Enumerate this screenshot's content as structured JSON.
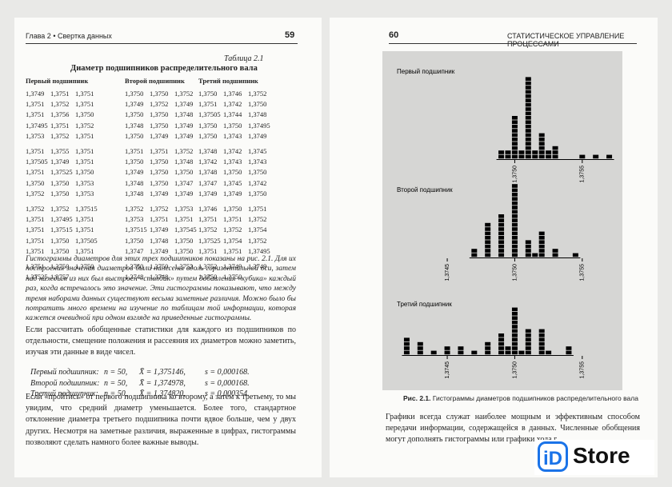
{
  "header": {
    "left_title": "Глава 2 • Свертка данных",
    "left_page": "59",
    "right_page": "60",
    "right_title": "СТАТИСТИЧЕСКОЕ УПРАВЛЕНИЕ ПРОЦЕССАМИ"
  },
  "table": {
    "label": "Таблица 2.1",
    "title": "Диаметр подшипников распределительного вала",
    "headers": [
      "Первый подшипник",
      "Второй подшипник",
      "Третий подшипник"
    ],
    "blocks": [
      [
        [
          [
            "1,3749",
            "1,3751",
            "1,3751"
          ],
          [
            "1,3750",
            "1,3750",
            "1,3752"
          ],
          [
            "1,3750",
            "1,3746",
            "1,3752"
          ]
        ],
        [
          [
            "1,3751",
            "1,3752",
            "1,3751"
          ],
          [
            "1,3749",
            "1,3752",
            "1,3749"
          ],
          [
            "1,3751",
            "1,3742",
            "1,3750"
          ]
        ],
        [
          [
            "1,3751",
            "1,3756",
            "1,3750"
          ],
          [
            "1,3750",
            "1,3750",
            "1,3748"
          ],
          [
            "1,37505",
            "1,3744",
            "1,3748"
          ]
        ],
        [
          [
            "1,37495",
            "1,3751",
            "1,3752"
          ],
          [
            "1,3748",
            "1,3750",
            "1,3749"
          ],
          [
            "1,3750",
            "1,3750",
            "1,37495"
          ]
        ],
        [
          [
            "1,3753",
            "1,3752",
            "1,3751"
          ],
          [
            "1,3750",
            "1,3749",
            "1,3749"
          ],
          [
            "1,3750",
            "1,3743",
            "1,3749"
          ]
        ]
      ],
      [
        [
          [
            "1,3751",
            "1,3755",
            "1,3751"
          ],
          [
            "1,3751",
            "1,3751",
            "1,3752"
          ],
          [
            "1,3748",
            "1,3742",
            "1,3745"
          ]
        ],
        [
          [
            "1,37505",
            "1,3749",
            "1,3751"
          ],
          [
            "1,3750",
            "1,3750",
            "1,3748"
          ],
          [
            "1,3742",
            "1,3743",
            "1,3743"
          ]
        ],
        [
          [
            "1,3751",
            "1,37525",
            "1,3750"
          ],
          [
            "1,3749",
            "1,3750",
            "1,3750"
          ],
          [
            "1,3748",
            "1,3750",
            "1,3750"
          ]
        ],
        [
          [
            "1,3750",
            "1,3750",
            "1,3753"
          ],
          [
            "1,3748",
            "1,3750",
            "1,3747"
          ],
          [
            "1,3747",
            "1,3745",
            "1,3742"
          ]
        ],
        [
          [
            "1,3752",
            "1,3750",
            "1,3753"
          ],
          [
            "1,3748",
            "1,3749",
            "1,3749"
          ],
          [
            "1,3749",
            "1,3749",
            "1,3750"
          ]
        ]
      ],
      [
        [
          [
            "1,3752",
            "1,3752",
            "1,37515"
          ],
          [
            "1,3752",
            "1,3752",
            "1,3753"
          ],
          [
            "1,3746",
            "1,3750",
            "1,3751"
          ]
        ],
        [
          [
            "1,3751",
            "1,37495",
            "1,3751"
          ],
          [
            "1,3753",
            "1,3751",
            "1,3751"
          ],
          [
            "1,3751",
            "1,3751",
            "1,3752"
          ]
        ],
        [
          [
            "1,3751",
            "1,37515",
            "1,3751"
          ],
          [
            "1,37515",
            "1,3749",
            "1,37545"
          ],
          [
            "1,3752",
            "1,3752",
            "1,3754"
          ]
        ],
        [
          [
            "1,3751",
            "1,3750",
            "1,37505"
          ],
          [
            "1,3750",
            "1,3748",
            "1,3750"
          ],
          [
            "1,37525",
            "1,3754",
            "1,3752"
          ]
        ],
        [
          [
            "1,3751",
            "1,3750",
            "1,3751"
          ],
          [
            "1,3747",
            "1,3749",
            "1,3750"
          ],
          [
            "1,3751",
            "1,3751",
            "1,37495"
          ]
        ]
      ],
      [
        [
          [
            "1,3751",
            "1,3750",
            "1,3750"
          ],
          [
            "1,3750",
            "1,3750",
            "1,3752"
          ],
          [
            "1,3752",
            "1,3749",
            "1,3749"
          ]
        ],
        [
          [
            "1,37525",
            "1,3757"
          ],
          [
            "1,3748",
            "1,3748"
          ],
          [
            "1,3750",
            "1,3750"
          ]
        ]
      ]
    ]
  },
  "text": {
    "italic": "Гистограммы диаметров для этих трех подшипников показаны на рис. 2.1. Для их построения значения диаметров были нанесены вдоль горизонтальной оси, затем над каждым из них был выстроен «столбик» путем добавления «кубика» каждый раз, когда встречалось это значение. Эти гистограммы показывают, что между тремя наборами данных существуют весьма заметные различия. Можно было бы потратить много времени на изучение по таблицам той информации, которая кажется очевидной при одном взгляде на приведенные гистограммы.",
    "p1": "Если рассчитать обобщенные статистики для каждого из подшипников по отдельности, смещение положения и рассеяния их диаметров можно заметить, изучая эти данные в виде чисел.",
    "p2": "Если «пройтись» от первого подшипника ко второму, а затем к третьему, то мы увидим, что средний диаметр уменьшается. Более того, стандартное отклонение диаметра третьего подшипника почти вдвое больше, чем у двух других. Несмотря на заметные различия, выраженные в цифрах, гистограммы позволяют сделать намного более важные выводы.",
    "p3": "Графики всегда служат наиболее мощным и эффективным способом передачи информации, содержащейся в данных. Численные обобщения могут дополнять гистограммы или графики хода г"
  },
  "stats": [
    {
      "label": "Первый подшипник:",
      "n": "n = 50,",
      "mean": "X̄ = 1,375146,",
      "s": "s = 0,000168."
    },
    {
      "label": "Второй подшипник:",
      "n": "n = 50,",
      "mean": "X̄ = 1,374978,",
      "s": "s = 0,000168."
    },
    {
      "label": "Третий подшипник:",
      "n": "n = 50,",
      "mean": "X̄ = 1,374820,",
      "s": "s = 0,000354."
    }
  ],
  "figure": {
    "xlim": [
      1.37415,
      1.37575
    ],
    "caption_num": "Рис. 2.1.",
    "caption": "Гистограммы диаметров подшипников распределительного вала",
    "panels": [
      {
        "label": "Первый подшипник",
        "x": [
          1.3749,
          1.37495,
          1.375,
          1.37505,
          1.3751,
          1.37515,
          1.3752,
          1.37525,
          1.3753,
          1.3755,
          1.3756,
          1.3757
        ],
        "values": [
          2,
          2,
          10,
          2,
          19,
          2,
          6,
          2,
          3,
          1,
          1,
          1
        ],
        "xticks": [
          {
            "value": 1.375,
            "label": "1,3750"
          },
          {
            "value": 1.3755,
            "label": "1,3755"
          }
        ]
      },
      {
        "label": "Второй подшипник",
        "x": [
          1.3747,
          1.3748,
          1.3749,
          1.375,
          1.3751,
          1.37515,
          1.3752,
          1.3753,
          1.37545
        ],
        "values": [
          2,
          8,
          10,
          17,
          4,
          1,
          6,
          2,
          1
        ],
        "xticks": [
          {
            "value": 1.3745,
            "label": "1,3745"
          },
          {
            "value": 1.375,
            "label": "1,3750"
          },
          {
            "value": 1.3755,
            "label": "1,3755"
          }
        ]
      },
      {
        "label": "Третий подшипник",
        "x": [
          1.3742,
          1.3743,
          1.3744,
          1.3745,
          1.3746,
          1.3747,
          1.3748,
          1.3749,
          1.37495,
          1.375,
          1.37505,
          1.3751,
          1.3752,
          1.37525,
          1.3754
        ],
        "values": [
          4,
          3,
          1,
          2,
          2,
          1,
          3,
          5,
          2,
          11,
          1,
          6,
          6,
          1,
          2
        ],
        "xticks": [
          {
            "value": 1.3745,
            "label": "1,3745"
          },
          {
            "value": 1.375,
            "label": "1,3750"
          },
          {
            "value": 1.3755,
            "label": "1,3755"
          }
        ]
      }
    ]
  },
  "logo": {
    "i": "iD",
    "text": "Store"
  }
}
